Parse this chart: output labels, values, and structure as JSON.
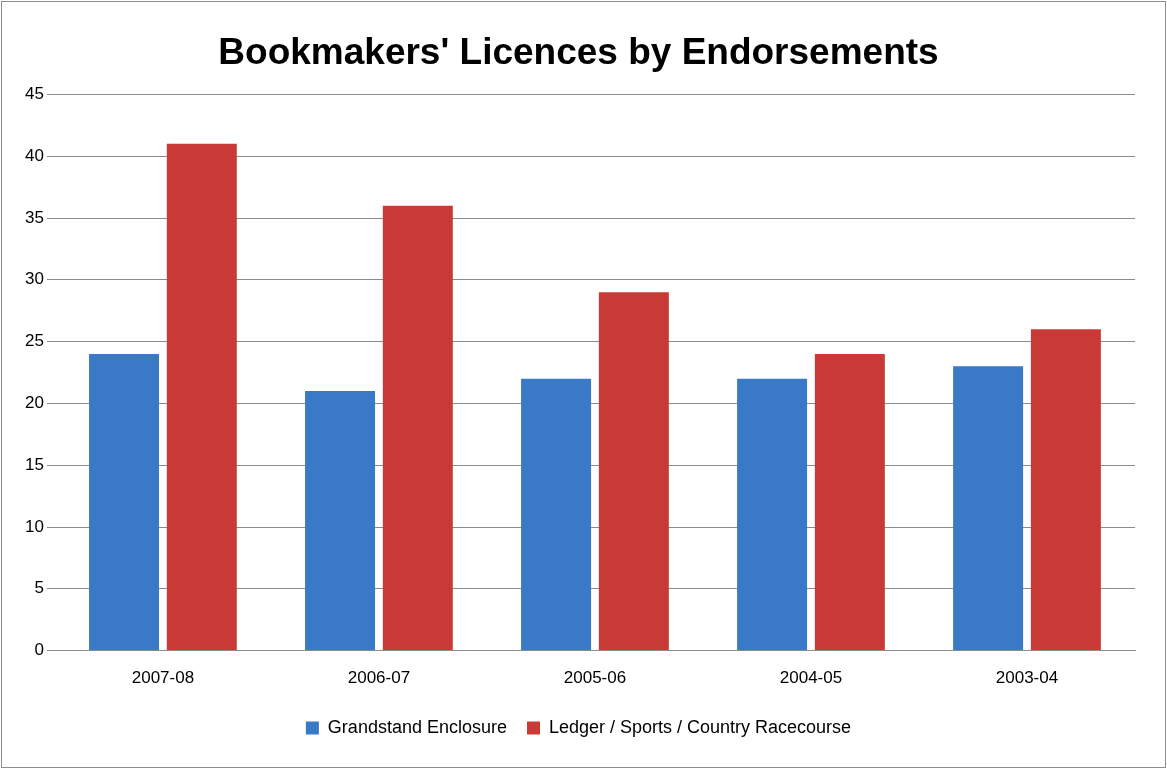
{
  "chart_data": {
    "type": "bar",
    "title": "Bookmakers' Licences by Endorsements",
    "categories": [
      "2007-08",
      "2006-07",
      "2005-06",
      "2004-05",
      "2003-04"
    ],
    "series": [
      {
        "name": "Grandstand Enclosure",
        "color": "#3a78c8",
        "values": [
          24,
          21,
          22,
          22,
          23
        ]
      },
      {
        "name": "Ledger / Sports / Country Racecourse",
        "color": "#c93a36",
        "values": [
          41,
          36,
          29,
          24,
          26
        ]
      }
    ],
    "ylim": [
      0,
      45
    ],
    "yticks": [
      0,
      5,
      10,
      15,
      20,
      25,
      30,
      35,
      40,
      45
    ],
    "grid": "y",
    "legend": "bottom"
  }
}
